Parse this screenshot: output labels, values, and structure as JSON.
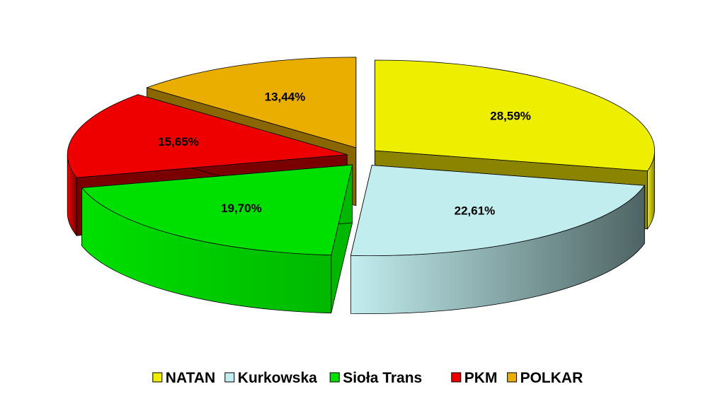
{
  "chart_data": {
    "type": "pie",
    "style": "3d-exploded",
    "legend_position": "bottom",
    "slices": [
      {
        "name": "NATAN",
        "value": 28.59,
        "label": "28,59%",
        "color": "#EEEE00",
        "side_color": "#8A8400"
      },
      {
        "name": "Kurkowska",
        "value": 22.61,
        "label": "22,61%",
        "color": "#C2EDEE",
        "side_color": "#4E6464"
      },
      {
        "name": "Sioła Trans",
        "value": 19.7,
        "label": "19,70%",
        "color": "#00E000",
        "side_color": "#00B800"
      },
      {
        "name": "PKM",
        "value": 15.65,
        "label": "15,65%",
        "color": "#EE0000",
        "side_color": "#7A0000"
      },
      {
        "name": "POLKAR",
        "value": 13.44,
        "label": "13,44%",
        "color": "#EAAE00",
        "side_color": "#8A6600"
      }
    ]
  }
}
